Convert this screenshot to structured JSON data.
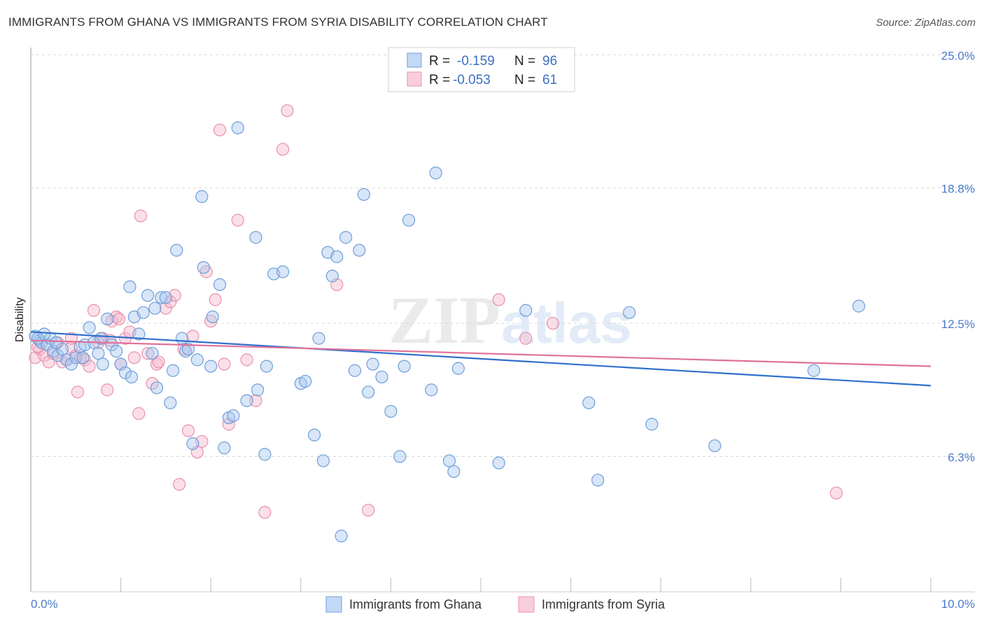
{
  "header": {
    "title": "IMMIGRANTS FROM GHANA VS IMMIGRANTS FROM SYRIA DISABILITY CORRELATION CHART",
    "source": "Source: ZipAtlas.com"
  },
  "watermark": {
    "zip": "ZIP",
    "atlas": "atlas"
  },
  "colors": {
    "ghana_fill": "#a9c8ef",
    "ghana_stroke": "#6f9ed8",
    "ghana_line": "#2f6fcc",
    "syria_fill": "#f6b9cc",
    "syria_stroke": "#e891ad",
    "syria_line": "#e0729a",
    "grid": "#d9d9d9",
    "tick_text": "#4a7cc9"
  },
  "legend": {
    "rows": [
      {
        "r_label": "R =",
        "r_value": "-0.159",
        "n_label": "N =",
        "n_value": "96"
      },
      {
        "r_label": "R =",
        "r_value": "-0.053",
        "n_label": "N =",
        "n_value": "61"
      }
    ]
  },
  "chart_data": {
    "type": "scatter",
    "title": "IMMIGRANTS FROM GHANA VS IMMIGRANTS FROM SYRIA DISABILITY CORRELATION CHART",
    "xlabel": "",
    "ylabel": "Disability",
    "xlim": [
      0,
      10
    ],
    "ylim": [
      0,
      25.5
    ],
    "x_tick_labels": [
      "0.0%",
      "10.0%"
    ],
    "y_tick_values": [
      6.3,
      12.5,
      18.8,
      25.0
    ],
    "y_tick_labels": [
      "6.3%",
      "12.5%",
      "18.8%",
      "25.0%"
    ],
    "series": [
      {
        "name": "Immigrants from Ghana",
        "r": -0.159,
        "n": 96,
        "trend": {
          "x": [
            0,
            10
          ],
          "y": [
            12.1,
            9.6
          ]
        },
        "points": [
          [
            0.05,
            11.9
          ],
          [
            0.1,
            11.7
          ],
          [
            0.12,
            11.6
          ],
          [
            0.18,
            11.5
          ],
          [
            0.22,
            11.8
          ],
          [
            0.25,
            11.2
          ],
          [
            0.3,
            11.0
          ],
          [
            0.35,
            11.3
          ],
          [
            0.4,
            10.8
          ],
          [
            0.45,
            10.6
          ],
          [
            0.5,
            10.9
          ],
          [
            0.55,
            11.4
          ],
          [
            0.6,
            11.5
          ],
          [
            0.65,
            12.3
          ],
          [
            0.7,
            11.6
          ],
          [
            0.75,
            11.1
          ],
          [
            0.8,
            10.6
          ],
          [
            0.85,
            12.7
          ],
          [
            0.9,
            11.5
          ],
          [
            0.95,
            11.2
          ],
          [
            1.0,
            10.6
          ],
          [
            1.05,
            10.2
          ],
          [
            1.1,
            14.2
          ],
          [
            1.12,
            10.0
          ],
          [
            1.15,
            12.8
          ],
          [
            1.2,
            12.0
          ],
          [
            1.25,
            13.0
          ],
          [
            1.3,
            13.8
          ],
          [
            1.35,
            11.1
          ],
          [
            1.38,
            13.2
          ],
          [
            1.4,
            9.5
          ],
          [
            1.45,
            13.7
          ],
          [
            1.5,
            13.7
          ],
          [
            1.55,
            8.8
          ],
          [
            1.58,
            10.3
          ],
          [
            1.62,
            15.9
          ],
          [
            1.68,
            11.8
          ],
          [
            1.72,
            11.2
          ],
          [
            1.75,
            11.3
          ],
          [
            1.8,
            6.9
          ],
          [
            1.85,
            10.8
          ],
          [
            1.9,
            18.4
          ],
          [
            1.92,
            15.1
          ],
          [
            2.0,
            10.5
          ],
          [
            2.02,
            12.8
          ],
          [
            2.1,
            14.3
          ],
          [
            2.15,
            6.7
          ],
          [
            2.2,
            8.1
          ],
          [
            2.25,
            8.2
          ],
          [
            2.3,
            21.6
          ],
          [
            2.4,
            8.9
          ],
          [
            2.5,
            16.5
          ],
          [
            2.52,
            9.4
          ],
          [
            2.6,
            6.4
          ],
          [
            2.62,
            10.5
          ],
          [
            2.7,
            14.8
          ],
          [
            2.8,
            14.9
          ],
          [
            3.0,
            9.7
          ],
          [
            3.05,
            9.8
          ],
          [
            3.15,
            7.3
          ],
          [
            3.2,
            11.8
          ],
          [
            3.25,
            6.1
          ],
          [
            3.3,
            15.8
          ],
          [
            3.35,
            14.7
          ],
          [
            3.4,
            15.6
          ],
          [
            3.45,
            2.6
          ],
          [
            3.5,
            16.5
          ],
          [
            3.6,
            10.3
          ],
          [
            3.65,
            15.9
          ],
          [
            3.7,
            18.5
          ],
          [
            3.75,
            9.3
          ],
          [
            3.8,
            10.6
          ],
          [
            3.9,
            10.0
          ],
          [
            4.0,
            8.4
          ],
          [
            4.1,
            6.3
          ],
          [
            4.15,
            10.5
          ],
          [
            4.2,
            17.3
          ],
          [
            4.45,
            9.4
          ],
          [
            4.5,
            19.5
          ],
          [
            4.65,
            6.1
          ],
          [
            4.7,
            5.6
          ],
          [
            4.75,
            10.4
          ],
          [
            5.2,
            6.0
          ],
          [
            5.5,
            13.1
          ],
          [
            6.2,
            8.8
          ],
          [
            6.3,
            5.2
          ],
          [
            6.65,
            13.0
          ],
          [
            6.9,
            7.8
          ],
          [
            7.6,
            6.8
          ],
          [
            8.7,
            10.3
          ],
          [
            9.2,
            13.3
          ],
          [
            0.08,
            11.8
          ],
          [
            0.28,
            11.6
          ],
          [
            0.58,
            10.9
          ],
          [
            0.15,
            12.0
          ],
          [
            0.78,
            11.8
          ]
        ]
      },
      {
        "name": "Immigrants from Syria",
        "r": -0.053,
        "n": 61,
        "trend": {
          "x": [
            0,
            10
          ],
          "y": [
            11.7,
            10.5
          ]
        },
        "points": [
          [
            0.05,
            10.9
          ],
          [
            0.1,
            11.3
          ],
          [
            0.15,
            11.0
          ],
          [
            0.2,
            10.7
          ],
          [
            0.25,
            11.1
          ],
          [
            0.3,
            11.6
          ],
          [
            0.35,
            10.7
          ],
          [
            0.4,
            10.8
          ],
          [
            0.45,
            11.4
          ],
          [
            0.5,
            11.0
          ],
          [
            0.52,
            9.3
          ],
          [
            0.55,
            10.9
          ],
          [
            0.6,
            10.8
          ],
          [
            0.65,
            10.5
          ],
          [
            0.7,
            13.1
          ],
          [
            0.75,
            11.6
          ],
          [
            0.8,
            11.8
          ],
          [
            0.85,
            9.4
          ],
          [
            0.88,
            11.7
          ],
          [
            0.9,
            12.6
          ],
          [
            0.95,
            12.8
          ],
          [
            1.0,
            10.6
          ],
          [
            1.05,
            11.8
          ],
          [
            1.1,
            12.1
          ],
          [
            1.15,
            10.9
          ],
          [
            1.2,
            8.3
          ],
          [
            1.22,
            17.5
          ],
          [
            1.3,
            11.1
          ],
          [
            1.35,
            9.7
          ],
          [
            1.4,
            10.6
          ],
          [
            1.42,
            10.7
          ],
          [
            1.5,
            13.2
          ],
          [
            1.55,
            13.5
          ],
          [
            1.6,
            13.8
          ],
          [
            1.65,
            5.0
          ],
          [
            1.7,
            11.3
          ],
          [
            1.75,
            7.5
          ],
          [
            1.8,
            11.9
          ],
          [
            1.85,
            6.5
          ],
          [
            1.9,
            7.0
          ],
          [
            1.95,
            14.9
          ],
          [
            2.0,
            12.6
          ],
          [
            2.05,
            13.6
          ],
          [
            2.1,
            21.5
          ],
          [
            2.15,
            10.6
          ],
          [
            2.2,
            7.8
          ],
          [
            2.3,
            17.3
          ],
          [
            2.4,
            10.8
          ],
          [
            2.5,
            8.9
          ],
          [
            2.6,
            3.7
          ],
          [
            2.8,
            20.6
          ],
          [
            2.85,
            22.4
          ],
          [
            3.4,
            14.3
          ],
          [
            3.75,
            3.8
          ],
          [
            5.2,
            13.6
          ],
          [
            5.5,
            11.8
          ],
          [
            5.8,
            12.5
          ],
          [
            8.95,
            4.6
          ],
          [
            0.08,
            11.4
          ],
          [
            0.45,
            11.8
          ],
          [
            0.98,
            12.7
          ]
        ]
      }
    ]
  },
  "bottom_legend": {
    "items": [
      {
        "label": "Immigrants from Ghana"
      },
      {
        "label": "Immigrants from Syria"
      }
    ]
  }
}
